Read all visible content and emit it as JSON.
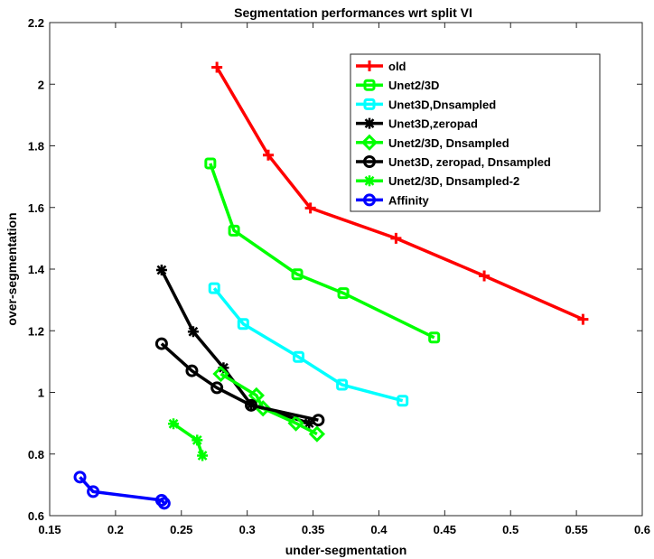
{
  "chart_data": {
    "type": "line",
    "title": "Segmentation performances wrt split VI",
    "xlabel": "under-segmentation",
    "ylabel": "over-segmentation",
    "xlim": [
      0.15,
      0.6
    ],
    "ylim": [
      0.6,
      2.2
    ],
    "xticks": [
      0.15,
      0.2,
      0.25,
      0.3,
      0.35,
      0.4,
      0.45,
      0.5,
      0.55,
      0.6
    ],
    "yticks": [
      0.6,
      0.8,
      1,
      1.2,
      1.4,
      1.6,
      1.8,
      2,
      2.2
    ],
    "xtick_labels": [
      "0.15",
      "0.2",
      "0.25",
      "0.3",
      "0.35",
      "0.4",
      "0.45",
      "0.5",
      "0.55",
      "0.6"
    ],
    "ytick_labels": [
      "0.6",
      "0.8",
      "1",
      "1.2",
      "1.4",
      "1.6",
      "1.8",
      "2",
      "2.2"
    ],
    "grid": false,
    "legend_position": "top-right",
    "series": [
      {
        "name": "old",
        "color": "#ff0000",
        "marker": "plus",
        "x": [
          0.277,
          0.316,
          0.348,
          0.413,
          0.48,
          0.555
        ],
        "y": [
          2.055,
          1.77,
          1.598,
          1.5,
          1.378,
          1.237
        ]
      },
      {
        "name": "Unet2/3D",
        "color": "#00ff00",
        "marker": "square",
        "x": [
          0.272,
          0.29,
          0.338,
          0.373,
          0.442
        ],
        "y": [
          1.743,
          1.525,
          1.383,
          1.322,
          1.178
        ]
      },
      {
        "name": "Unet3D,Dnsampled",
        "color": "#00ffff",
        "marker": "square",
        "x": [
          0.275,
          0.297,
          0.339,
          0.372,
          0.418
        ],
        "y": [
          1.338,
          1.222,
          1.115,
          1.025,
          0.973
        ]
      },
      {
        "name": "Unet3D,zeropad",
        "color": "#000000",
        "marker": "asterisk",
        "x": [
          0.235,
          0.259,
          0.282,
          0.303,
          0.347
        ],
        "y": [
          1.397,
          1.197,
          1.08,
          0.96,
          0.9
        ]
      },
      {
        "name": "Unet2/3D, Dnsampled",
        "color": "#00ff00",
        "marker": "diamond",
        "x": [
          0.28,
          0.307,
          0.312,
          0.337,
          0.353
        ],
        "y": [
          1.06,
          0.99,
          0.948,
          0.9,
          0.865
        ]
      },
      {
        "name": "Unet3D, zeropad, Dnsampled",
        "color": "#000000",
        "marker": "circle",
        "x": [
          0.235,
          0.258,
          0.277,
          0.303,
          0.354
        ],
        "y": [
          1.158,
          1.07,
          1.015,
          0.958,
          0.91
        ]
      },
      {
        "name": "Unet2/3D, Dnsampled-2",
        "color": "#00ff00",
        "marker": "asterisk",
        "x": [
          0.244,
          0.262,
          0.266
        ],
        "y": [
          0.898,
          0.845,
          0.795
        ]
      },
      {
        "name": "Affinity",
        "color": "#0000ff",
        "marker": "circle",
        "x": [
          0.173,
          0.183,
          0.235,
          0.237
        ],
        "y": [
          0.725,
          0.678,
          0.65,
          0.64
        ]
      }
    ]
  }
}
